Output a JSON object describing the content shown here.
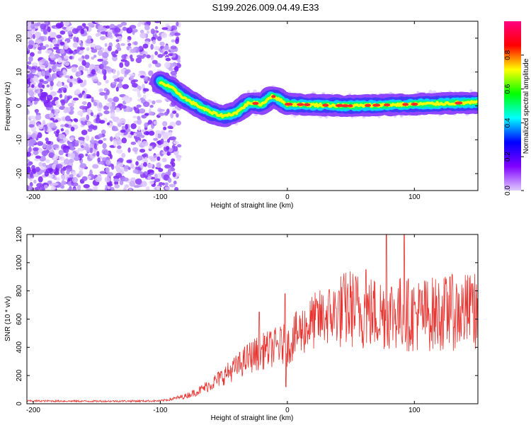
{
  "title": "S199.2026.009.04.49.E33",
  "colors": {
    "snr_line": "#e8322e",
    "axis": "#000000",
    "spectral_band": "#ff2a2a"
  },
  "chart_data": [
    {
      "type": "heatmap",
      "title": "S199.2026.009.04.49.E33",
      "xlabel": "Height of straight line (km)",
      "ylabel": "Frequency (Hz)",
      "xlim": [
        -205,
        150
      ],
      "ylim": [
        -25,
        25
      ],
      "xticks": [
        -200,
        -100,
        0,
        100
      ],
      "xtick_labels": [
        "-200",
        "-100",
        "0",
        "100"
      ],
      "yticks": [
        -20,
        -10,
        0,
        10,
        20
      ],
      "ytick_labels": [
        "-20",
        "-10",
        "0",
        "10",
        "20"
      ],
      "colorbar": {
        "label": "Normalized spectral amplitude",
        "range": [
          0,
          1
        ],
        "ticks": [
          "0.0",
          "0.2",
          "0.4",
          "0.6",
          "0.8"
        ],
        "tick_values": [
          0.0,
          0.2,
          0.4,
          0.6,
          0.8
        ],
        "stops": [
          "#e0ccff",
          "#8000ff",
          "#0000ff",
          "#00ffff",
          "#00ff00",
          "#ffff00",
          "#ff0000",
          "#ff0080"
        ]
      },
      "band_center_hz": [
        {
          "x": -100,
          "y": 7
        },
        {
          "x": -90,
          "y": 5
        },
        {
          "x": -80,
          "y": 2
        },
        {
          "x": -70,
          "y": 0
        },
        {
          "x": -60,
          "y": -2
        },
        {
          "x": -50,
          "y": -3
        },
        {
          "x": -40,
          "y": -2
        },
        {
          "x": -30,
          "y": 1
        },
        {
          "x": -20,
          "y": 0.5
        },
        {
          "x": -12,
          "y": 3
        },
        {
          "x": 0,
          "y": 0.5
        },
        {
          "x": 50,
          "y": 0
        },
        {
          "x": 100,
          "y": 0.5
        },
        {
          "x": 150,
          "y": 1
        }
      ]
    },
    {
      "type": "line",
      "title": "",
      "xlabel": "Height of straight line (km)",
      "ylabel": "SNR (10 * v/v)",
      "xlim": [
        -205,
        150
      ],
      "ylim": [
        0,
        1200
      ],
      "xticks": [
        -200,
        -100,
        0,
        100
      ],
      "xtick_labels": [
        "-200",
        "-100",
        "0",
        "100"
      ],
      "yticks": [
        0,
        200,
        400,
        600,
        800,
        1000,
        1200
      ],
      "ytick_labels": [
        "0",
        "200",
        "400",
        "600",
        "800",
        "1000",
        "1200"
      ],
      "series": [
        {
          "name": "SNR",
          "envelope": {
            "x": [
              -205,
              -150,
              -100,
              -90,
              -80,
              -70,
              -60,
              -50,
              -40,
              -30,
              -20,
              -10,
              -2,
              0,
              5,
              10,
              20,
              30,
              40,
              50,
              60,
              70,
              80,
              100,
              120,
              150
            ],
            "y": [
              20,
              18,
              20,
              35,
              55,
              90,
              140,
              200,
              260,
              330,
              370,
              400,
              420,
              400,
              470,
              510,
              580,
              620,
              650,
              680,
              650,
              640,
              650,
              630,
              640,
              660
            ]
          },
          "spikes": [
            {
              "x": -22,
              "y": 650
            },
            {
              "x": -18,
              "y": 480
            },
            {
              "x": -2,
              "y": 780
            },
            {
              "x": -1,
              "y": 120
            },
            {
              "x": 62,
              "y": 950
            },
            {
              "x": 78,
              "y": 1200
            },
            {
              "x": 92,
              "y": 1200
            },
            {
              "x": 128,
              "y": 900
            },
            {
              "x": 145,
              "y": 850
            }
          ]
        }
      ]
    }
  ]
}
